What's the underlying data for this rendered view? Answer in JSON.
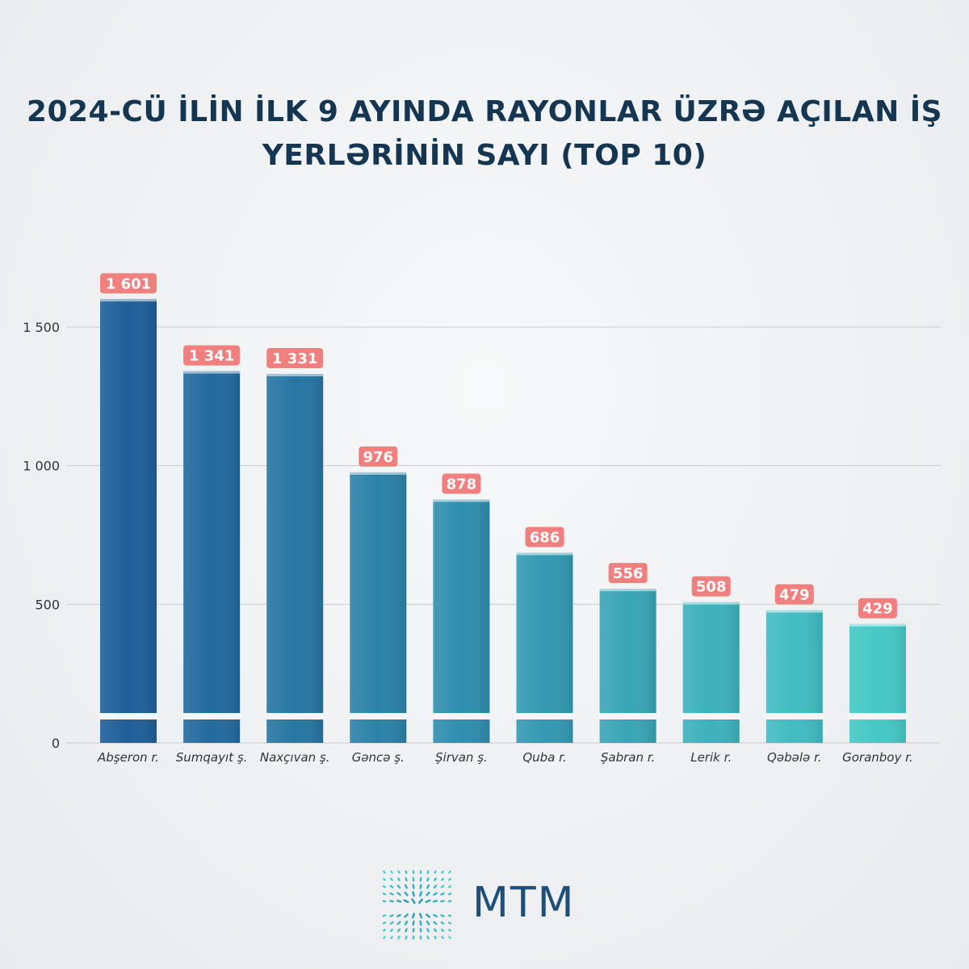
{
  "title": {
    "line1": "2024-CÜ İLİN İLK 9 AYINDA RAYONLAR ÜZRƏ AÇILAN İŞ",
    "line2": "YERLƏRİNİN SAYI (TOP 10)"
  },
  "logo": {
    "text": "MTM",
    "icon": "mtm-logo-icon",
    "color": "#1c4f7a"
  },
  "colors": {
    "bar_dark": "#1e5f9a",
    "bar_light": "#45c8c6",
    "label_bg": "#f07f7e",
    "label_text": "#ffffff",
    "axis_text": "#333333",
    "grid": "#c9cbce"
  },
  "chart_data": {
    "type": "bar",
    "categories": [
      "Abşeron r.",
      "Sumqayıt ş.",
      "Naxçıvan ş.",
      "Gəncə ş.",
      "Şirvan ş.",
      "Quba r.",
      "Şabran r.",
      "Lerik r.",
      "Qəbələ r.",
      "Goranboy r."
    ],
    "values": [
      1601,
      1341,
      1331,
      976,
      878,
      686,
      556,
      508,
      479,
      429
    ],
    "value_labels": [
      "1 601",
      "1 341",
      "1 331",
      "976",
      "878",
      "686",
      "556",
      "508",
      "479",
      "429"
    ],
    "yticks": [
      0,
      500,
      1000,
      1500
    ],
    "ytick_labels": [
      "0",
      "500",
      "1 000",
      "1 500"
    ],
    "ylim": [
      0,
      1700
    ],
    "grid": true,
    "legend": "none"
  }
}
